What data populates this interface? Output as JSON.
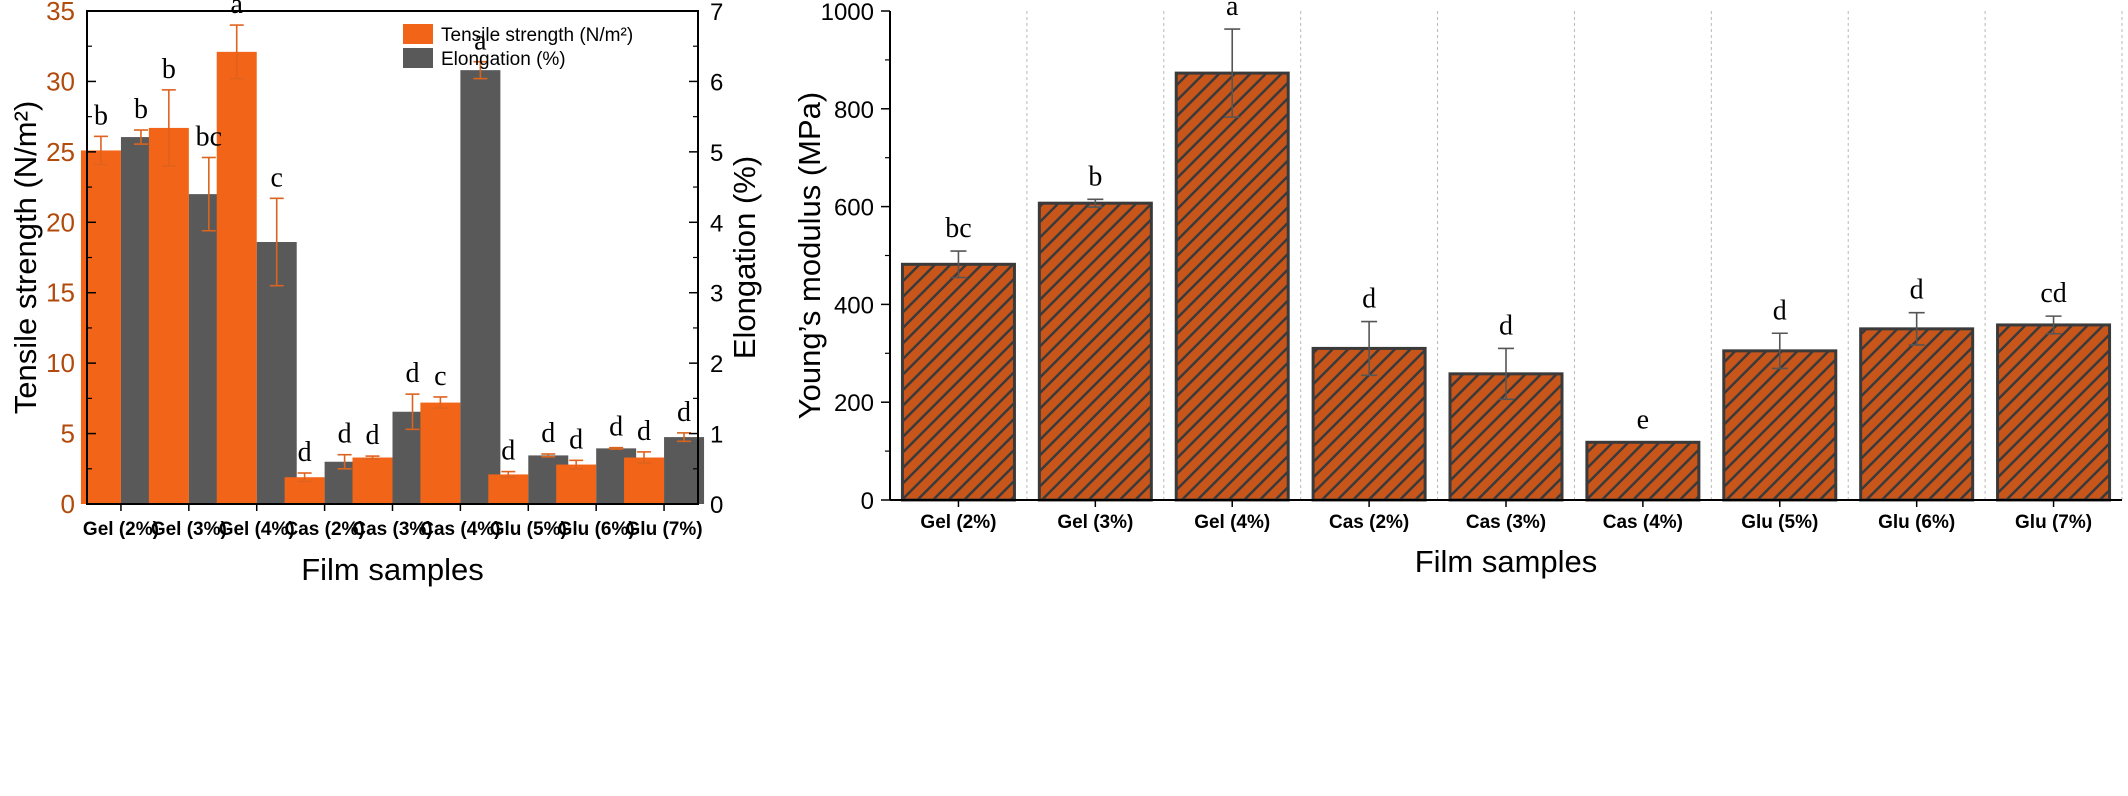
{
  "chart_data": [
    {
      "type": "bar",
      "title": "",
      "categories": [
        "Gel (2%)",
        "Gel (3%)",
        "Gel (4%)",
        "Cas (2%)",
        "Cas (3%)",
        "Cas (4%)",
        "Glu (5%)",
        "Glu (6%)",
        "Glu (7%)"
      ],
      "xlabel": "Film samples",
      "ylabel": "Tensile strength (N/m²)",
      "y2label": "Elongation (%)",
      "ylim": [
        0,
        35
      ],
      "y2lim": [
        0,
        7
      ],
      "yticks": [
        "0",
        "5",
        "10",
        "15",
        "20",
        "25",
        "30",
        "35"
      ],
      "y2ticks": [
        "0",
        "1",
        "2",
        "3",
        "4",
        "5",
        "6",
        "7"
      ],
      "legend_position": "top-center",
      "grid": false,
      "series": [
        {
          "name": "Tensile strength (N/m²)",
          "axis": "left",
          "color": "#f26418",
          "values": [
            25.1,
            26.7,
            32.1,
            1.9,
            3.3,
            7.2,
            2.1,
            2.8,
            3.3
          ],
          "errors": [
            1.0,
            2.7,
            1.9,
            0.3,
            0.1,
            0.4,
            0.2,
            0.3,
            0.4
          ],
          "letters": [
            "b",
            "b",
            "a",
            "d",
            "d",
            "c",
            "d",
            "d",
            "d"
          ]
        },
        {
          "name": "Elongation (%)",
          "axis": "right",
          "color": "#595959",
          "values": [
            5.21,
            4.4,
            3.72,
            0.6,
            1.31,
            6.16,
            0.69,
            0.79,
            0.95
          ],
          "errors": [
            0.1,
            0.52,
            0.62,
            0.1,
            0.25,
            0.12,
            0.02,
            0.01,
            0.06
          ],
          "letters": [
            "b",
            "bc",
            "c",
            "d",
            "d",
            "a",
            "d",
            "d",
            "d"
          ]
        }
      ]
    },
    {
      "type": "bar",
      "title": "",
      "categories": [
        "Gel (2%)",
        "Gel (3%)",
        "Gel (4%)",
        "Cas (2%)",
        "Cas (3%)",
        "Cas (4%)",
        "Glu (5%)",
        "Glu (6%)",
        "Glu (7%)"
      ],
      "xlabel": "Film samples",
      "ylabel": "Young’s modulus (MPa)",
      "ylim": [
        0,
        1000
      ],
      "yticks": [
        "0",
        "200",
        "400",
        "600",
        "800",
        "1000"
      ],
      "grid": true,
      "series": [
        {
          "color": "#c8561b",
          "hatch_color": "#3a3a3a",
          "values": [
            482,
            607,
            873,
            310,
            258,
            118,
            305,
            350,
            358
          ],
          "errors": [
            27,
            8,
            90,
            55,
            52,
            0,
            36,
            33,
            18
          ],
          "letters": [
            "bc",
            "b",
            "a",
            "d",
            "d",
            "e",
            "d",
            "d",
            "cd"
          ]
        }
      ]
    }
  ]
}
